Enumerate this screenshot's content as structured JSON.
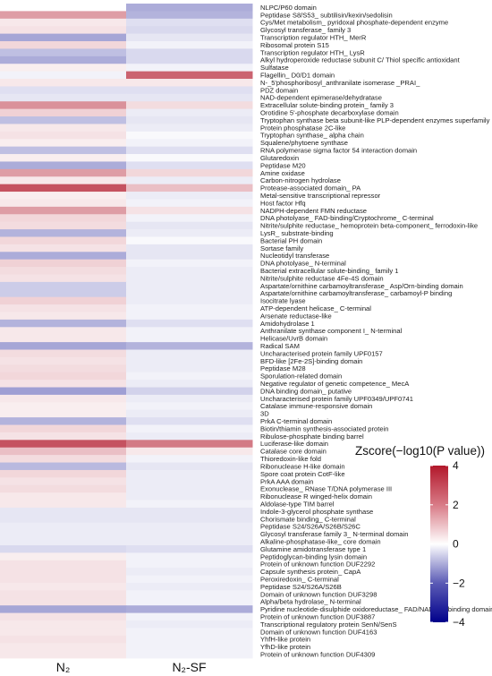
{
  "chart_data": {
    "type": "heatmap",
    "columns": [
      "N₂",
      "N₂-SF"
    ],
    "rows": [
      {
        "label": "NLPC/P60 domain",
        "values": [
          0.0,
          -1.3
        ]
      },
      {
        "label": "Peptidase S8/S53_ subtilisin/kexin/sedolisin",
        "values": [
          1.7,
          -1.2
        ]
      },
      {
        "label": "Cys/Met metabolism_ pyridoxal phosphate-dependent enzyme",
        "values": [
          0.4,
          -0.5
        ]
      },
      {
        "label": "Glycosyl transferase_ family 3",
        "values": [
          0.5,
          -0.6
        ]
      },
      {
        "label": "Transcription regulator HTH_ MerR",
        "values": [
          -1.4,
          -0.4
        ]
      },
      {
        "label": "Ribosomal protein S15",
        "values": [
          0.7,
          -0.2
        ]
      },
      {
        "label": "Transcription regulator HTH_ LysR",
        "values": [
          -1.0,
          -0.6
        ]
      },
      {
        "label": "Alkyl hydroperoxide reductase subunit C/ Thiol specific antioxidant",
        "values": [
          -1.3,
          -0.6
        ]
      },
      {
        "label": "Sulfatase",
        "values": [
          0.3,
          -0.2
        ]
      },
      {
        "label": "Flagellin_ D0/D1 domain",
        "values": [
          -0.2,
          2.7
        ]
      },
      {
        "label": "N-_5'phosphoribosyl_anthranilate isomerase _PRAI_",
        "values": [
          0.4,
          0.4
        ]
      },
      {
        "label": "PDZ domain",
        "values": [
          -0.5,
          -0.5
        ]
      },
      {
        "label": "NAD-dependent epimerase/dehydratase",
        "values": [
          -0.4,
          -0.4
        ]
      },
      {
        "label": "Extracellular solute-binding protein_ family 3",
        "values": [
          1.9,
          0.6
        ]
      },
      {
        "label": "Orotidine 5'-phosphate decarboxylase domain",
        "values": [
          0.8,
          -0.3
        ]
      },
      {
        "label": "Tryptophan synthase beta subunit-like PLP-dependent enzymes superfamily",
        "values": [
          -1.0,
          -0.4
        ]
      },
      {
        "label": "Protein phosphatase 2C-like",
        "values": [
          0.4,
          -0.3
        ]
      },
      {
        "label": "Tryptophan synthase_ alpha chain",
        "values": [
          0.5,
          -0.1
        ]
      },
      {
        "label": "Squalene/phytoene synthase",
        "values": [
          0.3,
          -0.2
        ]
      },
      {
        "label": "RNA polymerase sigma factor 54 interaction domain",
        "values": [
          -1.0,
          -0.5
        ]
      },
      {
        "label": "Glutaredoxin",
        "values": [
          0.3,
          -0.1
        ]
      },
      {
        "label": "Peptidase M20",
        "values": [
          -1.3,
          -0.5
        ]
      },
      {
        "label": "Amine oxidase",
        "values": [
          1.7,
          0.7
        ]
      },
      {
        "label": "Carbon-nitrogen hydrolase",
        "values": [
          0.4,
          -0.3
        ]
      },
      {
        "label": "Protease-associated domain_ PA",
        "values": [
          3.0,
          1.1
        ]
      },
      {
        "label": "Metal-sensitive transcriptional repressor",
        "values": [
          0.3,
          -0.3
        ]
      },
      {
        "label": "Host factor Hfq",
        "values": [
          0.4,
          -0.2
        ]
      },
      {
        "label": "NADPH-dependent FMN reductase",
        "values": [
          1.7,
          0.5
        ]
      },
      {
        "label": "DNA photolyase_ FAD-binding/Cryptochrome_ C-terminal",
        "values": [
          0.7,
          -0.2
        ]
      },
      {
        "label": "Nitrite/sulphite reductase_ hemoprotein beta-component_ ferrodoxin-like",
        "values": [
          0.6,
          -0.4
        ]
      },
      {
        "label": "LysR_ substrate-binding",
        "values": [
          -1.2,
          -0.3
        ]
      },
      {
        "label": "Bacterial PH domain",
        "values": [
          0.7,
          -0.1
        ]
      },
      {
        "label": "Sortase family",
        "values": [
          0.5,
          -0.4
        ]
      },
      {
        "label": "Nucleotidyl transferase",
        "values": [
          -1.3,
          -0.4
        ]
      },
      {
        "label": "DNA photolyase_ N-terminal",
        "values": [
          0.8,
          -0.2
        ]
      },
      {
        "label": "Bacterial extracellular solute-binding_ family 1",
        "values": [
          0.6,
          -0.3
        ]
      },
      {
        "label": "Nitrite/sulphite reductase 4Fe-4S domain",
        "values": [
          0.5,
          -0.3
        ]
      },
      {
        "label": "Aspartate/ornithine carbamoyltransferase_ Asp/Orn-binding domain",
        "values": [
          -0.8,
          -0.3
        ]
      },
      {
        "label": "Aspartate/ornithine carbamoyltransferase_ carbamoyl-P binding",
        "values": [
          -0.8,
          -0.3
        ]
      },
      {
        "label": "Isocitrate lyase",
        "values": [
          0.8,
          -0.3
        ]
      },
      {
        "label": "ATP-dependent helicase_ C-terminal",
        "values": [
          0.5,
          -0.2
        ]
      },
      {
        "label": "Arsenate reductase-like",
        "values": [
          0.4,
          -0.2
        ]
      },
      {
        "label": "Amidohydrolase 1",
        "values": [
          -1.2,
          -0.5
        ]
      },
      {
        "label": "Anthranilate synthase component I_ N-terminal",
        "values": [
          0.4,
          -0.2
        ]
      },
      {
        "label": "Helicase/UvrB domain",
        "values": [
          0.4,
          -0.2
        ]
      },
      {
        "label": "Radical SAM",
        "values": [
          -1.4,
          -1.2
        ]
      },
      {
        "label": "Uncharacterised protein family UPF0157",
        "values": [
          0.6,
          -0.3
        ]
      },
      {
        "label": "BFD-like [2Fe-2S]-binding domain",
        "values": [
          0.5,
          -0.3
        ]
      },
      {
        "label": "Peptidase M28",
        "values": [
          0.6,
          -0.3
        ]
      },
      {
        "label": "Sporulation-related domain",
        "values": [
          0.7,
          -0.2
        ]
      },
      {
        "label": "Negative regulator of genetic competence_ MecA",
        "values": [
          0.5,
          -0.3
        ]
      },
      {
        "label": "DNA binding domain_ putative",
        "values": [
          -1.5,
          -0.7
        ]
      },
      {
        "label": "Uncharacterised protein family UPF0349/UPF0741",
        "values": [
          0.4,
          -0.3
        ]
      },
      {
        "label": "Catalase immune-responsive domain",
        "values": [
          0.3,
          -0.2
        ]
      },
      {
        "label": "3D",
        "values": [
          0.3,
          -0.3
        ]
      },
      {
        "label": "PrkA C-terminal domain",
        "values": [
          -1.2,
          -0.5
        ]
      },
      {
        "label": "Biotin/thiamin synthesis-associated protein",
        "values": [
          0.7,
          -0.2
        ]
      },
      {
        "label": "Ribulose-phosphate binding barrel",
        "values": [
          0.5,
          -0.3
        ]
      },
      {
        "label": "Luciferase-like domain",
        "values": [
          3.0,
          2.3
        ]
      },
      {
        "label": "Catalase core domain",
        "values": [
          1.1,
          0.4
        ]
      },
      {
        "label": "Thioredoxin-like fold",
        "values": [
          0.6,
          -0.2
        ]
      },
      {
        "label": "Ribonuclease H-like domain",
        "values": [
          -1.1,
          -0.4
        ]
      },
      {
        "label": "Spore coat protein CotF-like",
        "values": [
          0.7,
          -0.3
        ]
      },
      {
        "label": "PrkA AAA domain",
        "values": [
          0.5,
          -0.3
        ]
      },
      {
        "label": "Exonuclease_ RNase T/DNA polymerase III",
        "values": [
          0.6,
          -0.3
        ]
      },
      {
        "label": "Ribonuclease R winged-helix domain",
        "values": [
          0.4,
          -0.3
        ]
      },
      {
        "label": "Aldolase-type TIM barrel",
        "values": [
          0.4,
          -0.2
        ]
      },
      {
        "label": "Indole-3-glycerol phosphate synthase",
        "values": [
          -0.4,
          -0.4
        ]
      },
      {
        "label": "Chorismate binding_ C-terminal",
        "values": [
          -0.4,
          -0.4
        ]
      },
      {
        "label": "Peptidase S24/S26A/S26B/S26C",
        "values": [
          -0.3,
          -0.3
        ]
      },
      {
        "label": "Glycosyl transferase family 3_ N-terminal domain",
        "values": [
          -0.3,
          -0.3
        ]
      },
      {
        "label": "Alkaline-phosphatase-like_ core domain",
        "values": [
          -0.3,
          -0.3
        ]
      },
      {
        "label": "Glutamine amidotransferase type 1",
        "values": [
          -0.6,
          -0.5
        ]
      },
      {
        "label": "Peptidoglycan-binding lysin domain",
        "values": [
          0.3,
          -0.2
        ]
      },
      {
        "label": "Protein of unknown function DUF2292",
        "values": [
          0.5,
          -0.2
        ]
      },
      {
        "label": "Capsule synthesis protein_ CapA",
        "values": [
          0.5,
          -0.3
        ]
      },
      {
        "label": "Peroxiredoxin_ C-terminal",
        "values": [
          0.5,
          -0.2
        ]
      },
      {
        "label": "Peptidase S24/S26A/S26B",
        "values": [
          0.4,
          -0.3
        ]
      },
      {
        "label": "Domain of unknown function DUF3298",
        "values": [
          0.5,
          -0.2
        ]
      },
      {
        "label": "Alpha/beta hydrolase_ N-terminal",
        "values": [
          0.5,
          -0.2
        ]
      },
      {
        "label": "Pyridine nucleotide-disulphide oxidoreductase_ FAD/NAD_P_-binding domain",
        "values": [
          -1.4,
          -1.3
        ]
      },
      {
        "label": "Protein of unknown function DUF3887",
        "values": [
          0.5,
          -0.2
        ]
      },
      {
        "label": "Transcriptional regulatory protein SenN/SenS",
        "values": [
          0.4,
          -0.3
        ]
      },
      {
        "label": "Domain of unknown function DUF4163",
        "values": [
          0.4,
          -0.2
        ]
      },
      {
        "label": "YhfH-like protein",
        "values": [
          0.5,
          -0.2
        ]
      },
      {
        "label": "YfhD-like protein",
        "values": [
          0.4,
          -0.2
        ]
      },
      {
        "label": "Protein of unknown function DUF4309",
        "values": [
          0.4,
          -0.2
        ]
      }
    ],
    "legend": {
      "title": "Zscore(−log10(P value))",
      "range": [
        -4,
        4
      ],
      "ticks": [
        4,
        2,
        0,
        -2,
        -4
      ],
      "colors": [
        "#00008b",
        "#ffffff",
        "#b2182b"
      ],
      "placement": "right"
    }
  }
}
